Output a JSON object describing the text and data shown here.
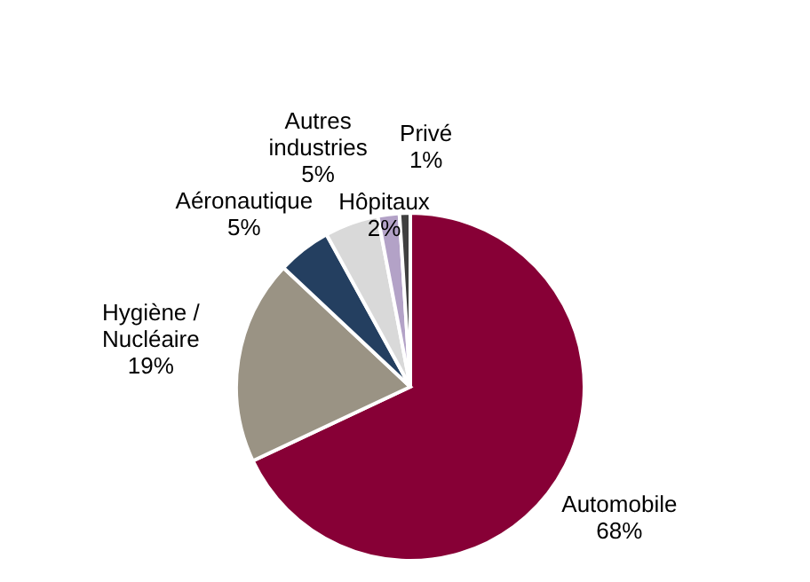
{
  "chart_data": {
    "type": "pie",
    "categories": [
      "Automobile",
      "Hygiène / Nucléaire",
      "Aéronautique",
      "Autres industries",
      "Hôpitaux",
      "Privé"
    ],
    "values": [
      68,
      19,
      5,
      5,
      2,
      1
    ],
    "value_labels": [
      "68%",
      "19%",
      "5%",
      "5%",
      "2%",
      "1%"
    ],
    "colors": [
      "#870036",
      "#9a9384",
      "#243f60",
      "#d9d9d9",
      "#b3a2c7",
      "#404040"
    ],
    "legend": false
  }
}
